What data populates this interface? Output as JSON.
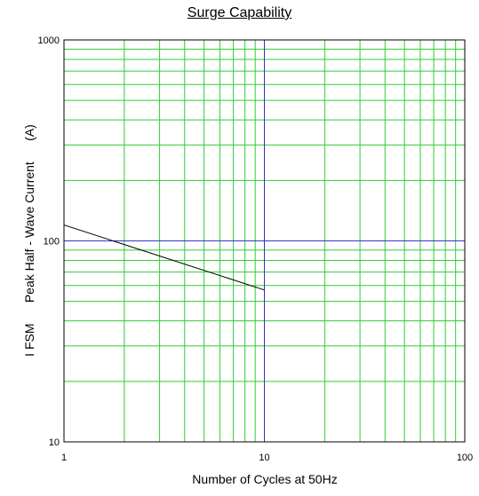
{
  "chart_data": {
    "type": "line",
    "title": "Surge Capability",
    "xlabel": "Number of Cycles at 50Hz",
    "ylabel": "I FSM      Peak Half - Wave Current      (A)",
    "x_scale": "log",
    "y_scale": "log",
    "xlim": [
      1,
      100
    ],
    "ylim": [
      10,
      1000
    ],
    "x_ticks": [
      "1",
      "10",
      "100"
    ],
    "y_ticks": [
      "10",
      "100",
      "1000"
    ],
    "grid": true,
    "colors": {
      "grid": "#33cc33",
      "major_ref": "#3333cc",
      "series": "#000000"
    },
    "series": [
      {
        "x": [
          1,
          10
        ],
        "y": [
          120,
          57
        ]
      }
    ]
  }
}
